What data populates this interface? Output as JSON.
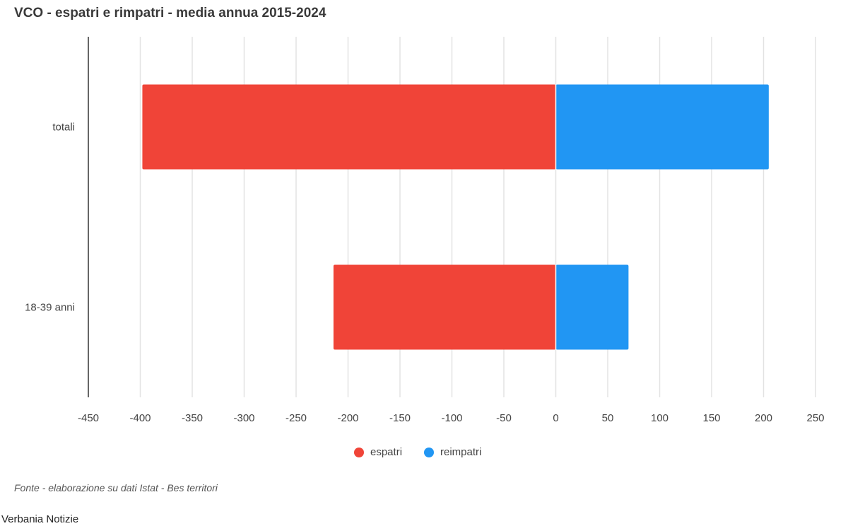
{
  "chart_data": {
    "type": "bar",
    "orientation": "horizontal",
    "stacked": true,
    "title": "VCO - espatri e rimpatri - media annua 2015-2024",
    "categories": [
      "totali",
      "18-39 anni"
    ],
    "series": [
      {
        "name": "espatri",
        "values": [
          -398,
          -214
        ],
        "color": "#f04438"
      },
      {
        "name": "reimpatri",
        "values": [
          205,
          70
        ],
        "color": "#2196f3"
      }
    ],
    "xlim": [
      -450,
      250
    ],
    "xticks": [
      -450,
      -400,
      -350,
      -300,
      -250,
      -200,
      -150,
      -100,
      -50,
      0,
      50,
      100,
      150,
      200,
      250
    ],
    "xlabel": "",
    "ylabel": "",
    "grid": "vertical",
    "legend": "bottom-center"
  },
  "footer": {
    "source": "Fonte - elaborazione su dati Istat - Bes territori",
    "credit": "Verbania Notizie"
  }
}
